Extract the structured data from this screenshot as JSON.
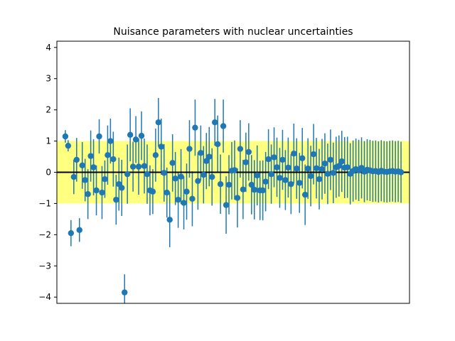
{
  "chart_data": {
    "type": "scatter",
    "title": "Nuisance parameters with nuclear uncertainties",
    "xlabel": "",
    "ylabel": "",
    "ylim": [
      -4.2,
      4.2
    ],
    "y_ticks": [
      -4,
      -3,
      -2,
      -1,
      0,
      1,
      2,
      3,
      4
    ],
    "x_ticks_visible": false,
    "grid": false,
    "band": {
      "lower": -1,
      "upper": 1,
      "color": "#ffff80"
    },
    "reference_line": {
      "y": 0,
      "color": "#000000"
    },
    "marker_color": "#1f77b4",
    "errorbar_color": "#1f77b4",
    "series": [
      {
        "x": [
          1,
          2,
          3,
          4,
          5,
          6,
          7,
          8,
          9,
          10,
          11,
          12,
          13,
          14,
          15,
          16,
          17,
          18,
          19,
          20,
          21,
          22,
          23,
          24,
          25,
          26,
          27,
          28,
          29,
          30,
          31,
          32,
          33,
          34,
          35,
          36,
          37,
          38,
          39,
          40,
          41,
          42,
          43,
          44,
          45,
          46,
          47,
          48,
          49,
          50,
          51,
          52,
          53,
          54,
          55,
          56,
          57,
          58,
          59,
          60,
          61,
          62,
          63,
          64,
          65,
          66,
          67,
          68,
          69,
          70,
          71,
          72,
          73,
          74,
          75,
          76,
          77,
          78,
          79,
          80,
          81,
          82,
          83,
          84,
          85,
          86,
          87,
          88,
          89,
          90,
          91,
          92,
          93,
          94,
          95,
          96,
          97,
          98,
          99,
          100,
          101,
          102,
          103,
          104,
          105,
          106,
          107,
          108,
          109,
          110,
          111,
          112,
          113,
          114,
          115,
          116,
          117,
          118,
          119,
          120
        ],
        "y": [
          1.15,
          0.85,
          -1.95,
          -0.15,
          0.4,
          -1.85,
          0.22,
          -0.25,
          -0.7,
          0.52,
          0.16,
          -0.58,
          1.15,
          -0.65,
          -0.22,
          0.55,
          1.0,
          0.42,
          -0.88,
          -0.38,
          -0.5,
          -3.85,
          -0.06,
          1.2,
          0.18,
          1.05,
          0.18,
          1.17,
          0.2,
          -0.06,
          -0.58,
          -0.62,
          0.55,
          1.6,
          0.82,
          -0.02,
          -0.65,
          -1.52,
          0.3,
          -0.2,
          -0.88,
          -0.14,
          -0.98,
          -0.62,
          0.75,
          -0.85,
          1.43,
          -0.28,
          0.62,
          -0.08,
          0.36,
          0.5,
          -0.15,
          1.6,
          0.9,
          -0.38,
          1.48,
          -1.05,
          -0.4,
          0.05,
          0.07,
          -0.82,
          0.75,
          -0.55,
          0.32,
          0.65,
          -0.4,
          -0.56,
          -0.1,
          -0.58,
          -0.58,
          -0.3,
          0.42,
          -0.06,
          0.48,
          0.16,
          -0.18,
          0.4,
          -0.25,
          0.15,
          -0.38,
          0.6,
          0.12,
          -0.34,
          0.45,
          -0.72,
          0.12,
          -0.12,
          0.58,
          0.13,
          -0.22,
          0.1,
          0.28,
          -0.05,
          0.4,
          -0.02,
          0.16,
          0.2,
          0.35,
          0.15,
          0.16,
          -0.05,
          0.04,
          0.1,
          0.06,
          0.14,
          0.02,
          0.08,
          0.06,
          0.03,
          0.04,
          0.01,
          0.05,
          0.02,
          0.01,
          0.03,
          0.04,
          0.02,
          0.03,
          0.0
        ],
        "yerr": [
          0.2,
          0.18,
          0.42,
          0.55,
          0.7,
          0.38,
          0.75,
          0.68,
          0.8,
          0.82,
          0.9,
          0.8,
          0.55,
          0.85,
          0.6,
          0.95,
          0.72,
          0.88,
          0.8,
          0.85,
          0.9,
          0.58,
          0.95,
          0.85,
          0.8,
          0.75,
          0.9,
          0.78,
          0.88,
          0.95,
          0.8,
          0.72,
          0.85,
          0.78,
          0.9,
          0.92,
          0.8,
          0.88,
          0.92,
          0.85,
          0.9,
          0.88,
          0.85,
          0.9,
          0.92,
          0.88,
          0.9,
          0.92,
          0.88,
          0.92,
          0.9,
          0.95,
          0.92,
          0.75,
          0.92,
          0.95,
          0.85,
          0.92,
          0.95,
          0.92,
          0.95,
          0.95,
          0.92,
          0.95,
          0.95,
          0.92,
          0.95,
          0.95,
          0.96,
          0.95,
          0.96,
          0.95,
          0.96,
          0.95,
          0.96,
          0.95,
          0.96,
          0.96,
          0.96,
          0.96,
          0.96,
          0.96,
          0.97,
          0.96,
          0.97,
          0.97,
          0.97,
          0.97,
          0.97,
          0.97,
          0.97,
          0.97,
          0.97,
          0.97,
          0.97,
          0.97,
          0.98,
          0.98,
          0.98,
          0.98,
          0.98,
          0.98,
          0.98,
          0.98,
          0.98,
          0.98,
          0.98,
          0.98,
          0.98,
          0.98,
          0.98,
          0.98,
          0.98,
          0.98,
          0.98,
          0.98,
          0.98,
          0.98,
          0.98,
          0.98
        ]
      }
    ]
  }
}
